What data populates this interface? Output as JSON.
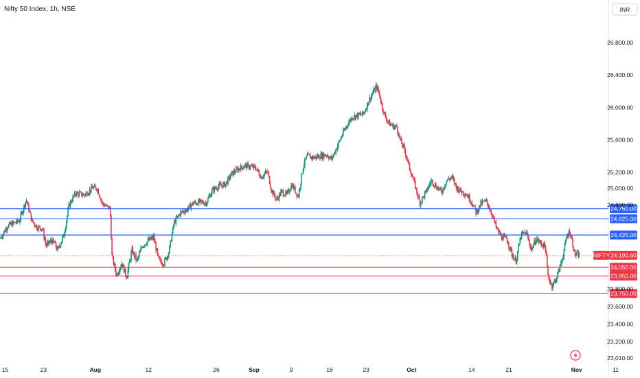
{
  "header": {
    "title": "Nifty 50 Index, 1h, NSE",
    "currency": "INR"
  },
  "chart_data": {
    "type": "candlestick",
    "title": "Nifty 50 Index, 1h, NSE",
    "ylim": [
      23010,
      26900
    ],
    "y_ticks": [
      26800,
      26400,
      26000,
      25600,
      25200,
      25000,
      24800,
      23800,
      23600,
      23400,
      23200,
      23010
    ],
    "y_tick_labels": [
      "26,800.00",
      "26,400.00",
      "26,000.00",
      "25,600.00",
      "25,200.00",
      "25,000.00",
      "24,800.00",
      "23,800.00",
      "23,600.00",
      "23,400.00",
      "23,200.00",
      "23,010.00"
    ],
    "x_ticks": [
      {
        "label": "15",
        "frac": 0.008,
        "bold": false
      },
      {
        "label": "23",
        "frac": 0.068,
        "bold": false
      },
      {
        "label": "Aug",
        "frac": 0.149,
        "bold": true
      },
      {
        "label": "12",
        "frac": 0.232,
        "bold": false
      },
      {
        "label": "26",
        "frac": 0.338,
        "bold": false
      },
      {
        "label": "Sep",
        "frac": 0.397,
        "bold": true
      },
      {
        "label": "9",
        "frac": 0.455,
        "bold": false
      },
      {
        "label": "16",
        "frac": 0.515,
        "bold": false
      },
      {
        "label": "23",
        "frac": 0.572,
        "bold": false
      },
      {
        "label": "Oct",
        "frac": 0.643,
        "bold": true
      },
      {
        "label": "14",
        "frac": 0.737,
        "bold": false
      },
      {
        "label": "21",
        "frac": 0.795,
        "bold": false
      },
      {
        "label": "Nov",
        "frac": 0.901,
        "bold": true
      },
      {
        "label": "11",
        "frac": 0.962,
        "bold": false
      }
    ],
    "levels": [
      {
        "value": 24750,
        "label": "24,750.00",
        "color": "#2962ff"
      },
      {
        "value": 24625,
        "label": "24,625.00",
        "color": "#2962ff"
      },
      {
        "value": 24425,
        "label": "24,425.00",
        "color": "#2962ff"
      },
      {
        "value": 24050,
        "label": "24,050.00",
        "color": "#f23645"
      },
      {
        "value": 23950,
        "label": "23,950.00",
        "color": "#f23645"
      },
      {
        "value": 23750,
        "label": "23,750.00",
        "color": "#f23645"
      }
    ],
    "last_price": {
      "symbol": "NIFTY",
      "value": 24190.6,
      "label": "24,190.60",
      "color": "#f23645"
    },
    "up_color": "#089981",
    "down_color": "#f23645",
    "path": [
      [
        0.0,
        24380
      ],
      [
        0.012,
        24540
      ],
      [
        0.03,
        24600
      ],
      [
        0.041,
        24860
      ],
      [
        0.05,
        24600
      ],
      [
        0.058,
        24520
      ],
      [
        0.066,
        24510
      ],
      [
        0.072,
        24300
      ],
      [
        0.08,
        24360
      ],
      [
        0.085,
        24330
      ],
      [
        0.09,
        24250
      ],
      [
        0.1,
        24430
      ],
      [
        0.108,
        24800
      ],
      [
        0.118,
        24940
      ],
      [
        0.132,
        24920
      ],
      [
        0.145,
        25010
      ],
      [
        0.152,
        25000
      ],
      [
        0.16,
        24810
      ],
      [
        0.172,
        24750
      ],
      [
        0.175,
        24180
      ],
      [
        0.182,
        23960
      ],
      [
        0.19,
        24100
      ],
      [
        0.198,
        23940
      ],
      [
        0.206,
        24250
      ],
      [
        0.214,
        24120
      ],
      [
        0.222,
        24300
      ],
      [
        0.232,
        24360
      ],
      [
        0.24,
        24400
      ],
      [
        0.248,
        24130
      ],
      [
        0.256,
        24100
      ],
      [
        0.264,
        24230
      ],
      [
        0.272,
        24580
      ],
      [
        0.282,
        24700
      ],
      [
        0.292,
        24740
      ],
      [
        0.302,
        24820
      ],
      [
        0.312,
        24830
      ],
      [
        0.322,
        24820
      ],
      [
        0.332,
        24980
      ],
      [
        0.342,
        25030
      ],
      [
        0.352,
        25050
      ],
      [
        0.362,
        25180
      ],
      [
        0.372,
        25240
      ],
      [
        0.382,
        25280
      ],
      [
        0.392,
        25270
      ],
      [
        0.4,
        25250
      ],
      [
        0.408,
        25140
      ],
      [
        0.418,
        25210
      ],
      [
        0.424,
        24980
      ],
      [
        0.432,
        24860
      ],
      [
        0.44,
        24960
      ],
      [
        0.448,
        24920
      ],
      [
        0.456,
        25050
      ],
      [
        0.466,
        24900
      ],
      [
        0.474,
        25280
      ],
      [
        0.48,
        25400
      ],
      [
        0.49,
        25380
      ],
      [
        0.5,
        25400
      ],
      [
        0.51,
        25420
      ],
      [
        0.518,
        25360
      ],
      [
        0.526,
        25500
      ],
      [
        0.534,
        25650
      ],
      [
        0.542,
        25780
      ],
      [
        0.55,
        25880
      ],
      [
        0.558,
        25900
      ],
      [
        0.568,
        25920
      ],
      [
        0.576,
        26080
      ],
      [
        0.584,
        26200
      ],
      [
        0.588,
        26260
      ],
      [
        0.592,
        26180
      ],
      [
        0.6,
        25920
      ],
      [
        0.608,
        25800
      ],
      [
        0.616,
        25760
      ],
      [
        0.62,
        25760
      ],
      [
        0.625,
        25600
      ],
      [
        0.632,
        25480
      ],
      [
        0.64,
        25250
      ],
      [
        0.648,
        25050
      ],
      [
        0.656,
        24820
      ],
      [
        0.666,
        24960
      ],
      [
        0.674,
        25100
      ],
      [
        0.682,
        25020
      ],
      [
        0.69,
        24960
      ],
      [
        0.698,
        25100
      ],
      [
        0.706,
        25140
      ],
      [
        0.714,
        25000
      ],
      [
        0.722,
        24960
      ],
      [
        0.73,
        24920
      ],
      [
        0.738,
        24820
      ],
      [
        0.744,
        24700
      ],
      [
        0.752,
        24820
      ],
      [
        0.76,
        24840
      ],
      [
        0.768,
        24700
      ],
      [
        0.776,
        24500
      ],
      [
        0.784,
        24400
      ],
      [
        0.792,
        24380
      ],
      [
        0.8,
        24200
      ],
      [
        0.806,
        24120
      ],
      [
        0.814,
        24420
      ],
      [
        0.822,
        24460
      ],
      [
        0.83,
        24260
      ],
      [
        0.838,
        24380
      ],
      [
        0.846,
        24320
      ],
      [
        0.852,
        24300
      ],
      [
        0.856,
        23960
      ],
      [
        0.862,
        23840
      ],
      [
        0.868,
        23900
      ],
      [
        0.874,
        24030
      ],
      [
        0.88,
        24200
      ],
      [
        0.886,
        24420
      ],
      [
        0.89,
        24470
      ],
      [
        0.894,
        24360
      ],
      [
        0.898,
        24200
      ],
      [
        0.905,
        24191
      ]
    ]
  }
}
